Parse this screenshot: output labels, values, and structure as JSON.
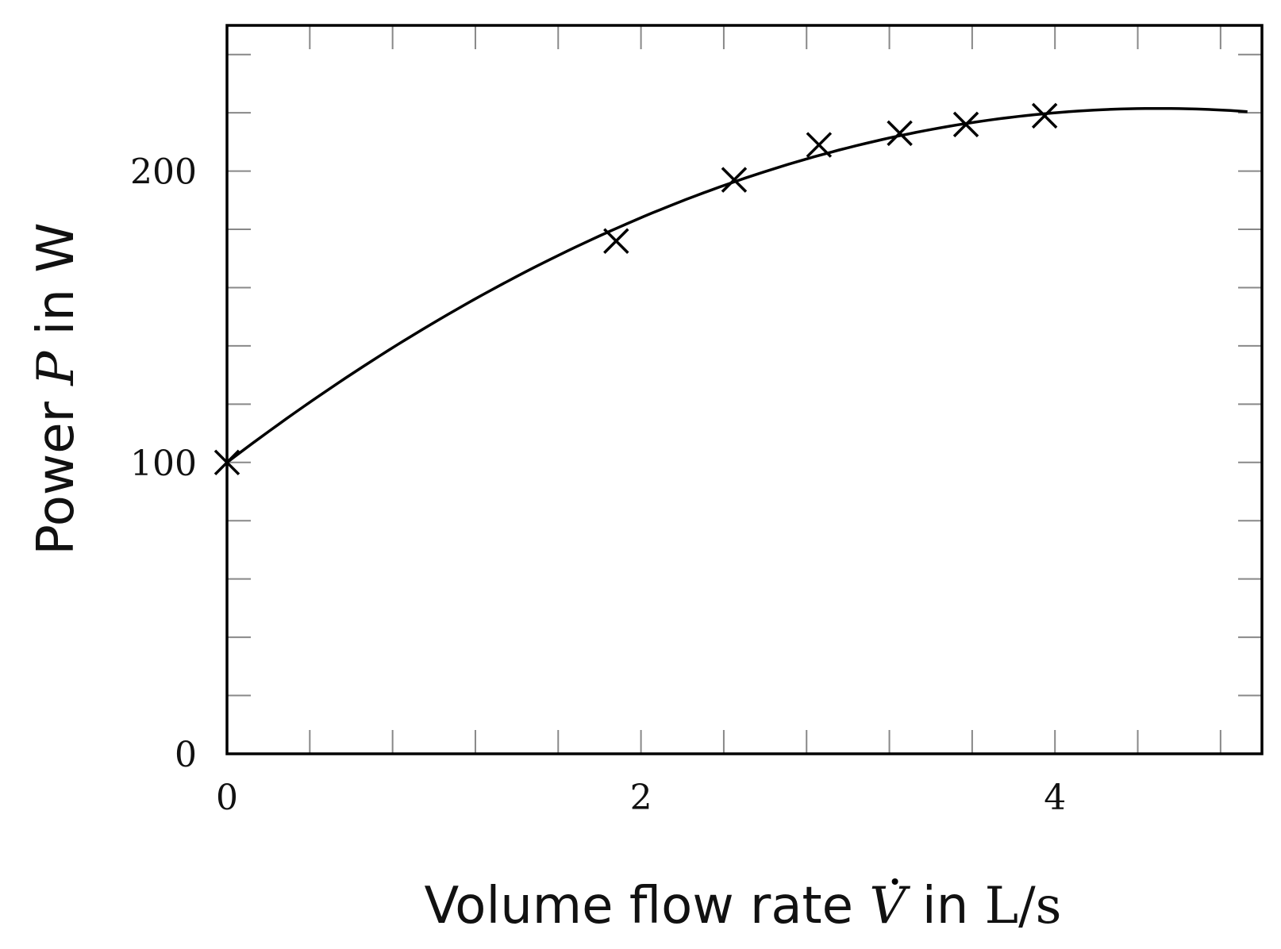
{
  "chart_data": {
    "type": "scatter",
    "xlabel": {
      "prefix": "Volume flow rate ",
      "symbol": "V",
      "mid": " in ",
      "unit": "L/s"
    },
    "ylabel": {
      "prefix": "Power ",
      "symbol": "P",
      "mid": " in ",
      "unit": "W"
    },
    "xlim": [
      0,
      5
    ],
    "ylim": [
      0,
      250
    ],
    "x_ticks_labeled": [
      0,
      2,
      4
    ],
    "x_ticks_minor_step": 0.4,
    "y_ticks_labeled": [
      0,
      100,
      200
    ],
    "y_ticks_minor_step": 20,
    "grid": false,
    "series": [
      {
        "kind": "markers",
        "marker": "x",
        "x": [
          0,
          1.88,
          2.45,
          2.86,
          3.25,
          3.57,
          3.95
        ],
        "y": [
          100,
          176,
          197,
          209,
          213,
          216,
          219
        ]
      },
      {
        "kind": "fit-curve",
        "model": "quadratic",
        "coefficients": {
          "a": -6.0,
          "b": 54.0,
          "c": 100.0
        },
        "x_range": [
          0,
          4.93
        ]
      }
    ],
    "colors": {
      "line": "#000000",
      "frame": "#000000",
      "tick": "#888888"
    }
  }
}
